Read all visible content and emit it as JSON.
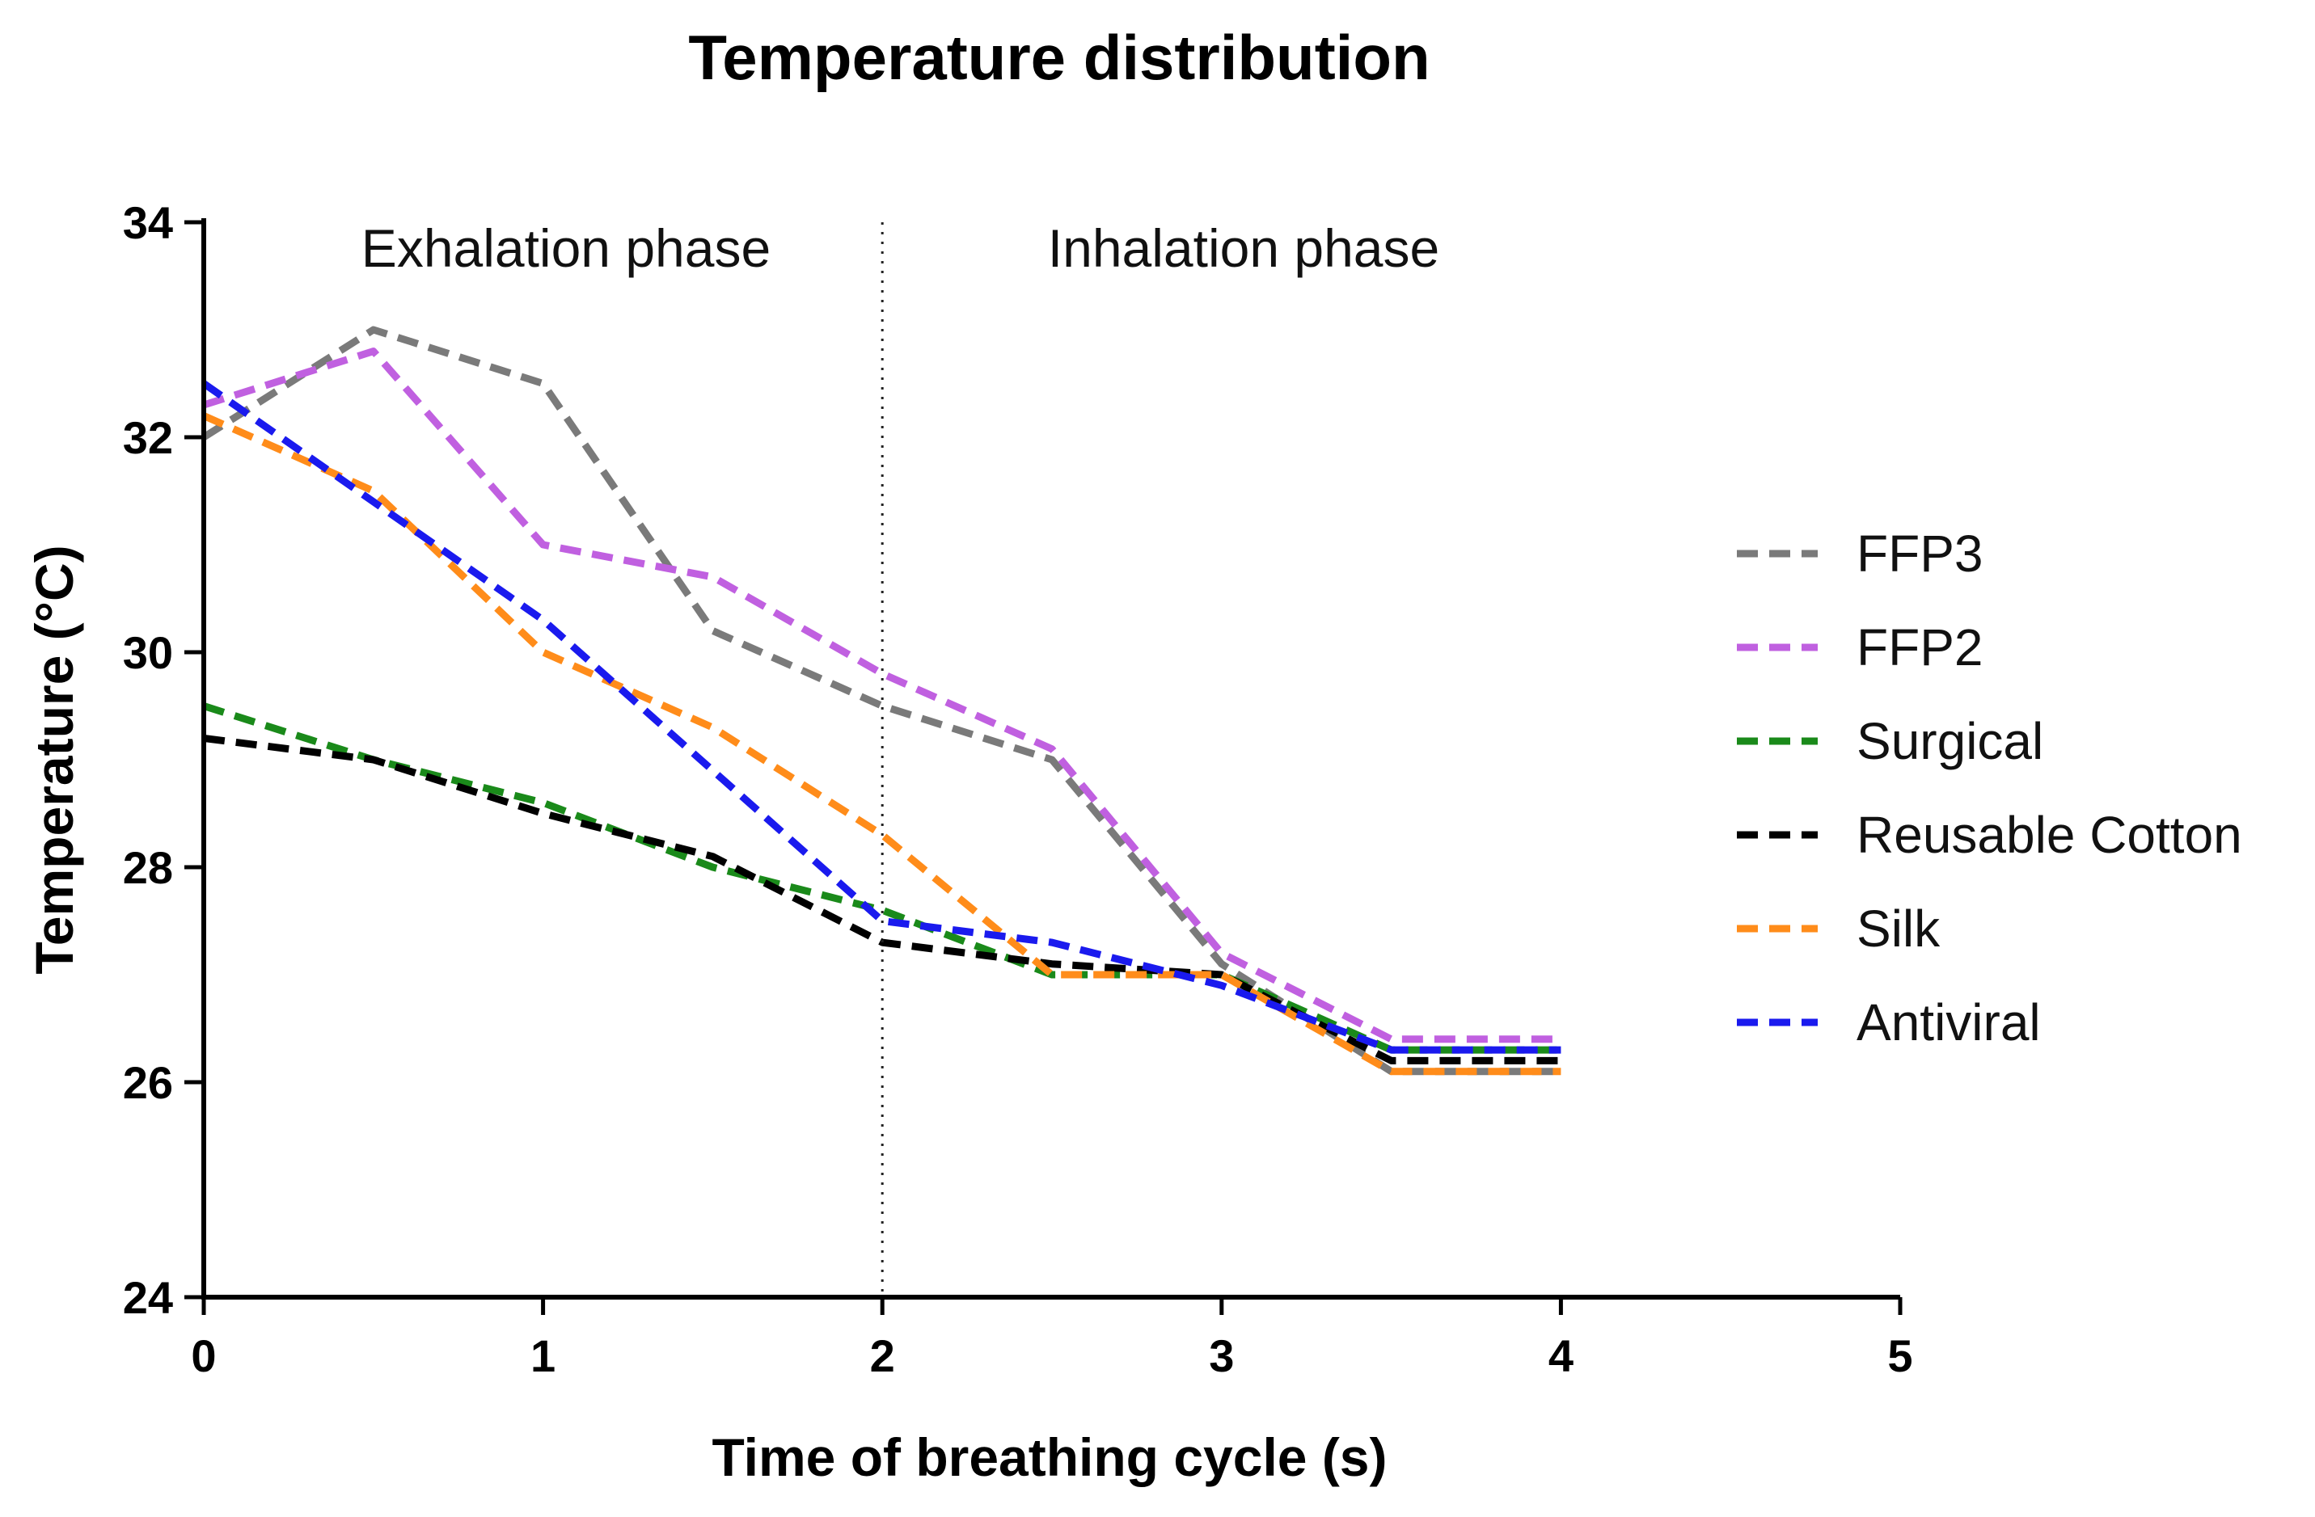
{
  "chart_data": {
    "type": "line",
    "title": "Temperature distribution",
    "xlabel": "Time of breathing cycle (s)",
    "ylabel": "Temperature (°C)",
    "xlim": [
      0,
      5
    ],
    "ylim": [
      24,
      34
    ],
    "xticks": [
      0,
      1,
      2,
      3,
      4,
      5
    ],
    "yticks": [
      24,
      26,
      28,
      30,
      32,
      34
    ],
    "grid": false,
    "legend_position": "right",
    "divider": {
      "x": 2,
      "style": "dotted"
    },
    "annotations": [
      {
        "id": "exhalation",
        "text": "Exhalation phase",
        "x": 1.05,
        "y": 33.6
      },
      {
        "id": "inhalation",
        "text": "Inhalation phase",
        "x": 3.05,
        "y": 33.6
      }
    ],
    "series": [
      {
        "name": "FFP3",
        "color": "#7a7a7a",
        "x": [
          0,
          0.5,
          1.0,
          1.5,
          2.0,
          2.5,
          3.0,
          3.5,
          4.0
        ],
        "values": [
          32.0,
          33.0,
          32.5,
          30.2,
          29.5,
          29.0,
          27.1,
          26.1,
          26.1
        ]
      },
      {
        "name": "FFP2",
        "color": "#c060e0",
        "x": [
          0,
          0.5,
          1.0,
          1.5,
          2.0,
          2.5,
          3.0,
          3.5,
          4.0
        ],
        "values": [
          32.3,
          32.8,
          31.0,
          30.7,
          29.8,
          29.1,
          27.2,
          26.4,
          26.4
        ]
      },
      {
        "name": "Surgical",
        "color": "#1a8a1a",
        "x": [
          0,
          0.5,
          1.0,
          1.5,
          2.0,
          2.5,
          3.0,
          3.5,
          4.0
        ],
        "values": [
          29.5,
          29.0,
          28.6,
          28.0,
          27.6,
          27.0,
          27.0,
          26.3,
          26.3
        ]
      },
      {
        "name": "Reusable Cotton",
        "color": "#000000",
        "x": [
          0,
          0.5,
          1.0,
          1.5,
          2.0,
          2.5,
          3.0,
          3.5,
          4.0
        ],
        "values": [
          29.2,
          29.0,
          28.5,
          28.1,
          27.3,
          27.1,
          27.0,
          26.2,
          26.2
        ]
      },
      {
        "name": "Silk",
        "color": "#ff8c1a",
        "x": [
          0,
          0.5,
          1.0,
          1.5,
          2.0,
          2.5,
          3.0,
          3.5,
          4.0
        ],
        "values": [
          32.2,
          31.5,
          30.0,
          29.3,
          28.3,
          27.0,
          27.0,
          26.1,
          26.1
        ]
      },
      {
        "name": "Antiviral",
        "color": "#1a1aee",
        "x": [
          0,
          0.5,
          1.0,
          1.5,
          2.0,
          2.5,
          3.0,
          3.5,
          4.0
        ],
        "values": [
          32.5,
          31.4,
          30.3,
          28.9,
          27.5,
          27.3,
          26.9,
          26.3,
          26.3
        ]
      }
    ]
  }
}
